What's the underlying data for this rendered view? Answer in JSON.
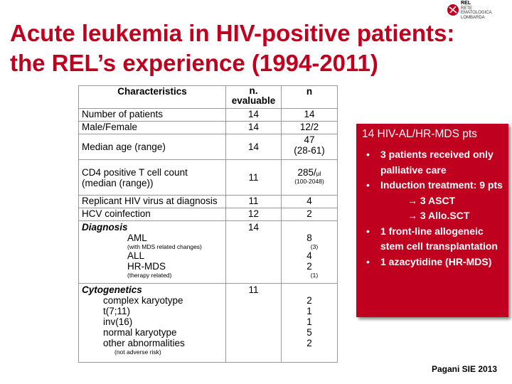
{
  "title": {
    "line1": "Acute leukemia in HIV-positive patients:",
    "line2": "the REL’s experience (1994-2011)"
  },
  "logo": {
    "line1": "REL",
    "line2": "RETE",
    "line3": "EMATOLOGICA",
    "line4": "LOMBARDA"
  },
  "table": {
    "headers": {
      "characteristics": "Characteristics",
      "evaluable_1": "n.",
      "evaluable_2": "evaluable",
      "n": "n"
    },
    "rows": {
      "patients": {
        "label": "Number of patients",
        "eval": "14",
        "n": "14"
      },
      "sex": {
        "label": "Male/Female",
        "eval": "14",
        "n": "12/2"
      },
      "age": {
        "label": "Median age (range)",
        "eval": "14",
        "n": "47",
        "range": "(28-61)"
      },
      "cd4": {
        "label1": "CD4 positive T cell count",
        "label2": "(median (range))",
        "eval": "11",
        "n": "285/",
        "unit": "µl",
        "range": "(100-2048)"
      },
      "hiv": {
        "label": "Replicant HIV virus at diagnosis",
        "eval": "11",
        "n": "4"
      },
      "hcv": {
        "label": "HCV coinfection",
        "eval": "12",
        "n": "2"
      }
    },
    "diagnosis": {
      "label": "Diagnosis",
      "eval": "14",
      "aml": "AML",
      "aml_note": "(with MDS related changes)",
      "aml_n": "8",
      "aml_note_n": "(3)",
      "all": "ALL",
      "all_n": "4",
      "hrmds": "HR-MDS",
      "hrmds_n": "2",
      "hrmds_note": "(therapy related)",
      "hrmds_note_n": "(1)"
    },
    "cytogenetics": {
      "label": "Cytogenetics",
      "eval": "11",
      "items": [
        {
          "label": "complex karyotype",
          "n": "2"
        },
        {
          "label": "t(7;11)",
          "n": "1"
        },
        {
          "label": "inv(16)",
          "n": "1"
        },
        {
          "label": "normal karyotype",
          "n": "5"
        },
        {
          "label": "other abnormalities",
          "n": "2"
        }
      ],
      "note": "(not adverse risk)"
    }
  },
  "box": {
    "heading": "14 HIV-AL/HR-MDS pts",
    "b1": "3 patients received only palliative care",
    "b2": "Induction treatment: 9 pts",
    "b2_s1": "→ 3 ASCT",
    "b2_s2": "→ 3 Allo.SCT",
    "b3": "1 front-line allogeneic stem cell transplantation",
    "b4": "1 azacytidine (HR-MDS)"
  },
  "credit": "Pagani SIE 2013"
}
